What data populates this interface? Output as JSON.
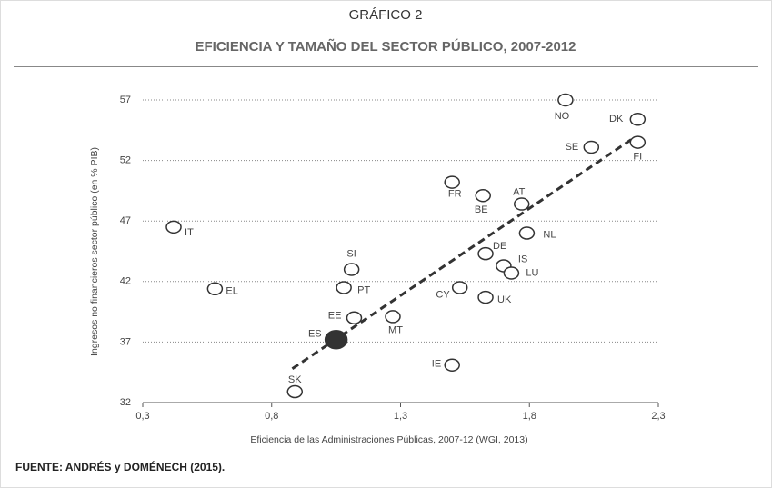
{
  "chart_data": {
    "type": "scatter",
    "title": "GRÁFICO 2",
    "subtitle": "EFICIENCIA Y TAMAÑO DEL SECTOR PÚBLICO, 2007-2012",
    "x_label": "Eficiencia de las Administraciones Públicas, 2007-12 (WGI, 2013)",
    "y_label": "Ingresos no financieros sector público (en % PIB)",
    "source": "FUENTE: ANDRÉS y DOMÉNECH (2015).",
    "labels": [
      "IT",
      "EL",
      "SI",
      "PT",
      "EE",
      "ES",
      "MT",
      "SK",
      "FR",
      "BE",
      "AT",
      "NL",
      "DE",
      "IS",
      "LU",
      "CY",
      "UK",
      "IE",
      "NO",
      "DK",
      "SE",
      "FI"
    ],
    "x": [
      0.42,
      0.58,
      1.11,
      1.08,
      1.12,
      1.05,
      1.27,
      0.89,
      1.5,
      1.62,
      1.77,
      1.79,
      1.63,
      1.7,
      1.73,
      1.53,
      1.63,
      1.5,
      1.94,
      2.22,
      2.04,
      2.22
    ],
    "values": [
      46.5,
      41.4,
      43.0,
      41.5,
      39.0,
      37.2,
      39.1,
      32.9,
      50.2,
      49.1,
      48.4,
      46.0,
      44.3,
      43.3,
      42.7,
      41.5,
      40.7,
      35.1,
      57.0,
      55.4,
      53.1,
      53.5
    ],
    "highlight": "ES",
    "color": "#333333",
    "trend_line": {
      "x": [
        0.88,
        2.2
      ],
      "values": [
        34.8,
        53.8
      ]
    },
    "xlim": [
      0.3,
      2.3
    ],
    "xticks": [
      {
        "value": 0.3,
        "label": "0,3"
      },
      {
        "value": 0.8,
        "label": "0,8"
      },
      {
        "value": 1.3,
        "label": "1,3"
      },
      {
        "value": 1.8,
        "label": "1,8"
      },
      {
        "value": 2.3,
        "label": "2,3"
      }
    ],
    "ylim": [
      32,
      57
    ],
    "yticks": [
      32,
      37,
      42,
      47,
      52,
      57
    ],
    "grid": true
  }
}
